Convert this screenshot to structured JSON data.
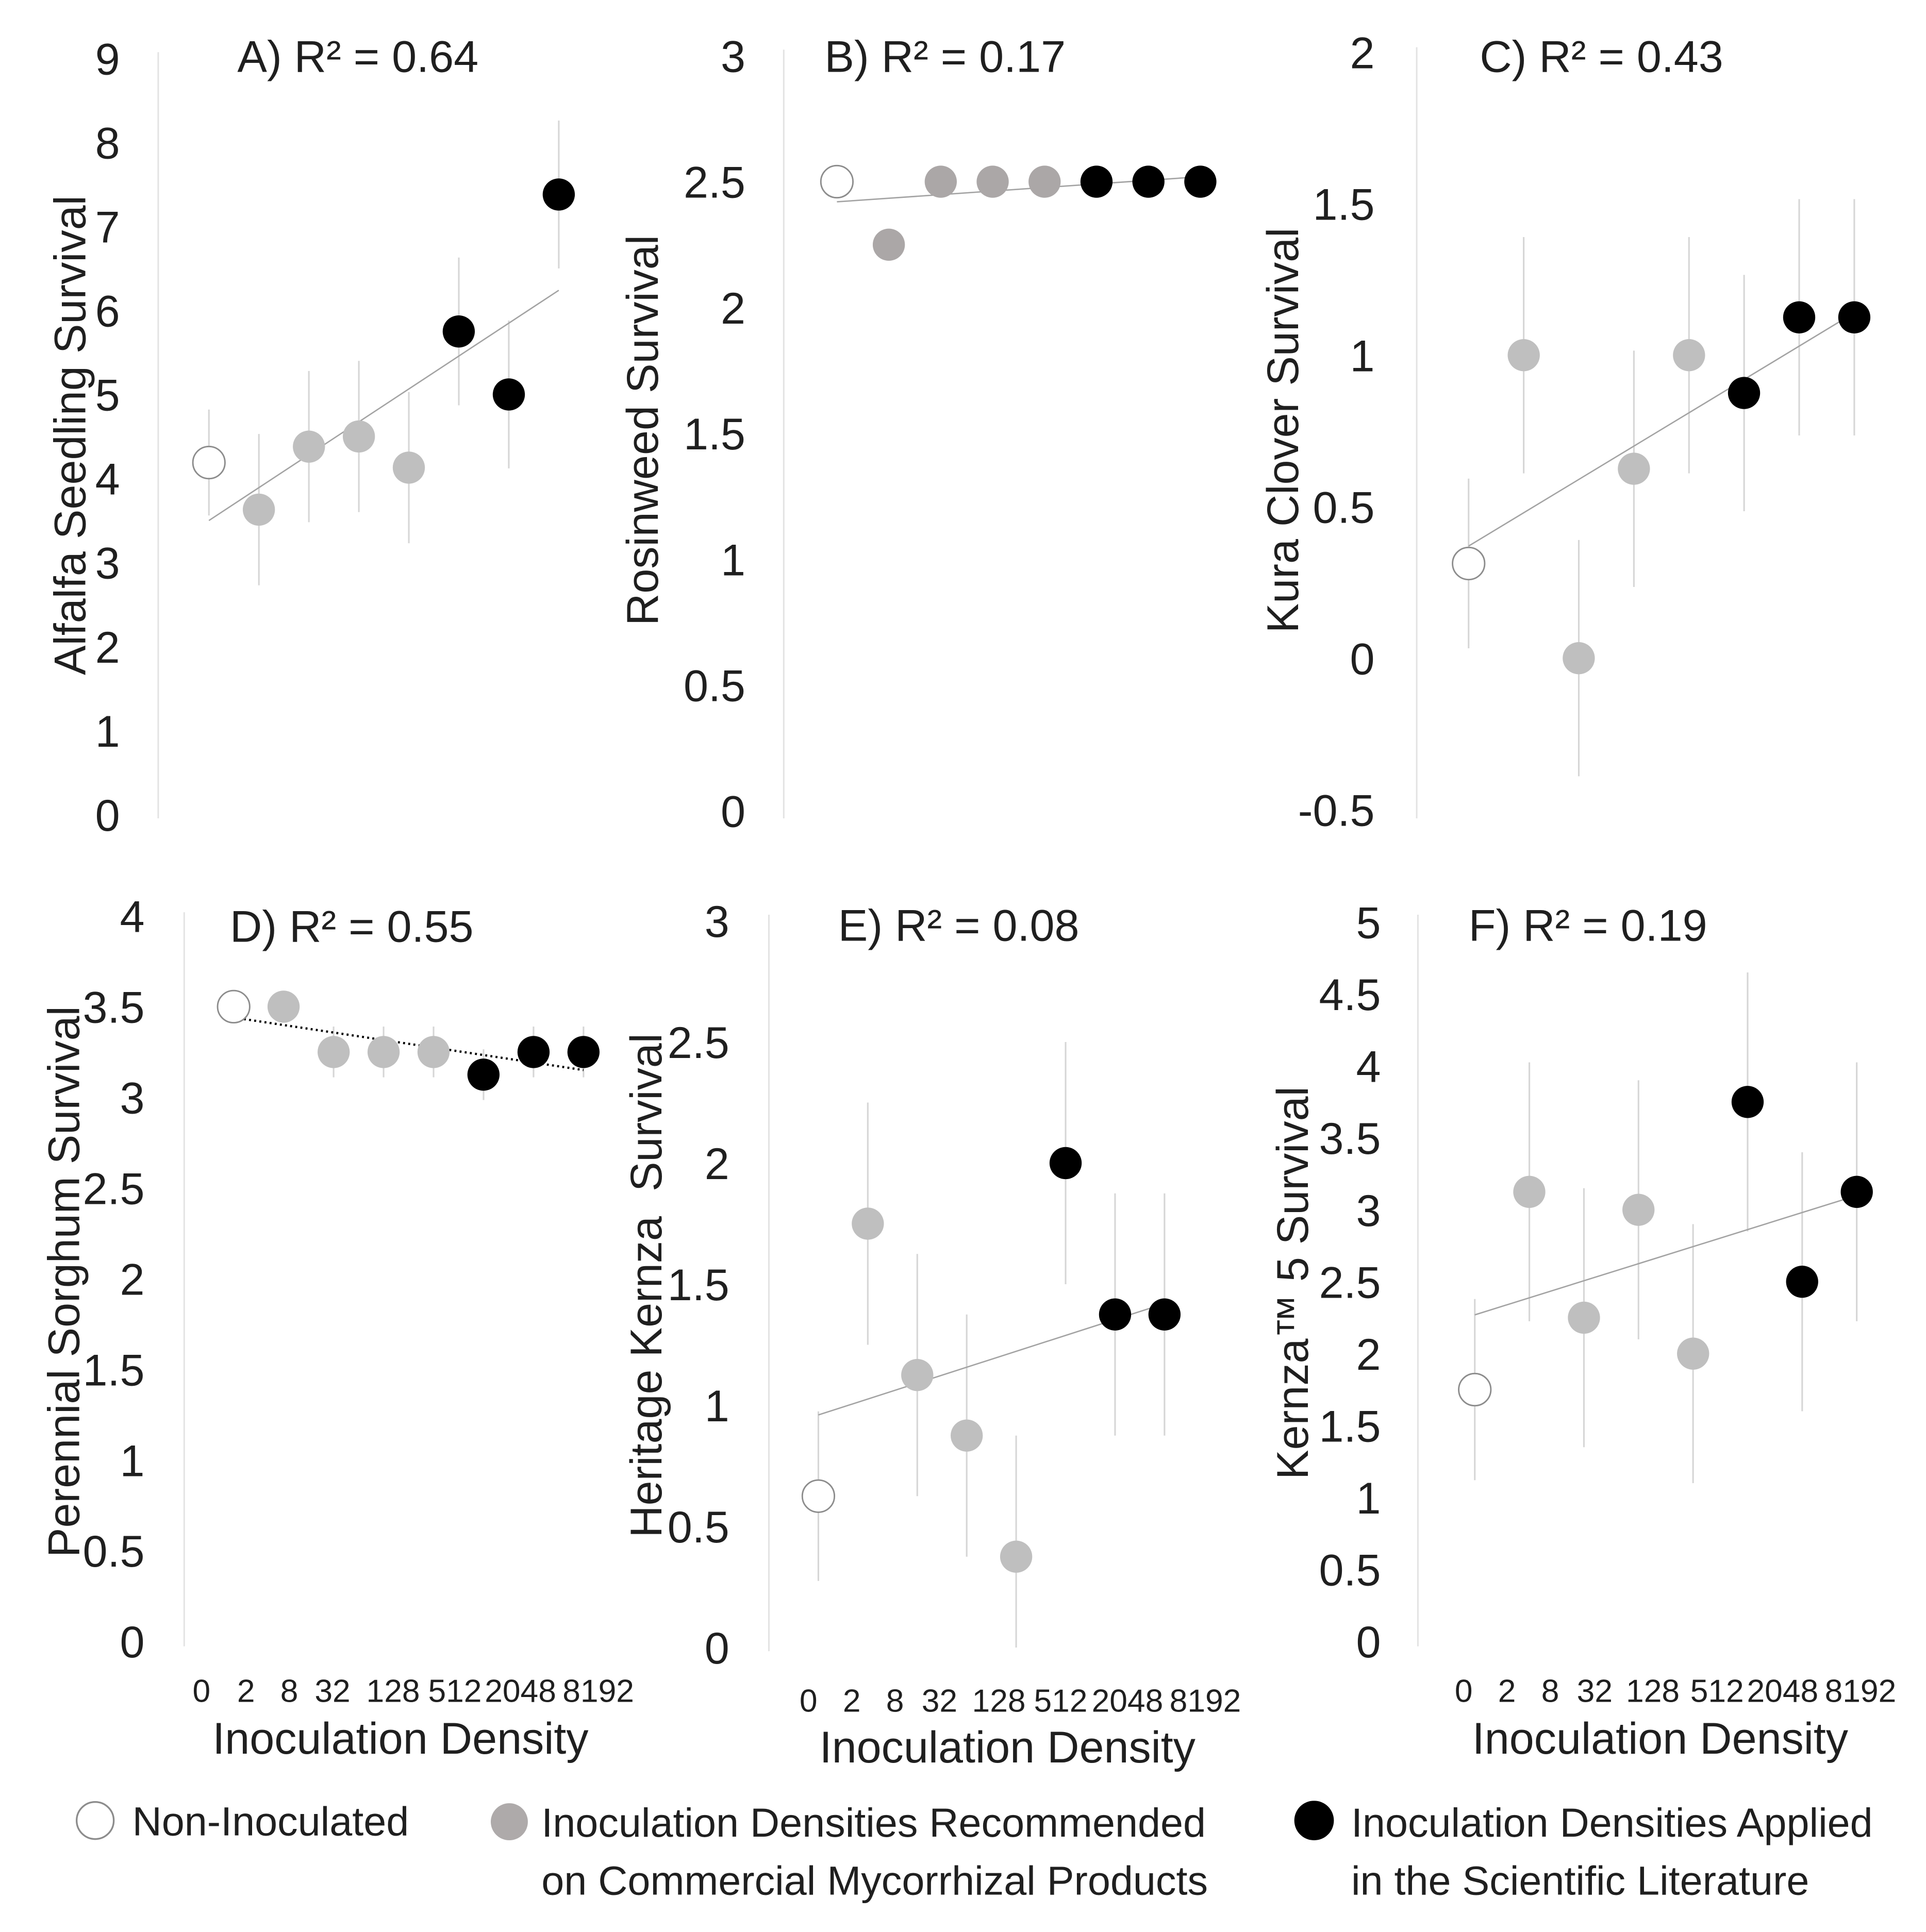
{
  "colors": {
    "points": [
      "#ffffff",
      "#bfbfbf",
      "#000000"
    ],
    "legend_points": [
      "#ffffff",
      "#aeaaaa",
      "#000000"
    ],
    "non_inoculated_stroke": "#8c8c8c",
    "trendline": "#a3a3a3",
    "trendline_dotted": "#000000",
    "error_bar": "#d6d6d6",
    "axis_line": "#e2e2e2"
  },
  "chart_data": [
    {
      "type": "scatter",
      "title": "A) R² = 0.64",
      "r_squared": 0.64,
      "ylabel": "Alfalfa Seedling Survival",
      "xlabel": "",
      "ylim": [
        0,
        9
      ],
      "yticks": [
        "0",
        "1",
        "2",
        "3",
        "4",
        "5",
        "6",
        "7",
        "8",
        "9"
      ],
      "xticks": [],
      "points": [
        {
          "x": 0,
          "y": 4.19,
          "error": 0.63,
          "group": 0
        },
        {
          "x": 2,
          "y": 3.63,
          "error": 0.9,
          "group": 1
        },
        {
          "x": 8,
          "y": 4.38,
          "error": 0.9,
          "group": 1
        },
        {
          "x": 32,
          "y": 4.5,
          "error": 0.9,
          "group": 1
        },
        {
          "x": 128,
          "y": 4.13,
          "error": 0.9,
          "group": 1
        },
        {
          "x": 512,
          "y": 5.75,
          "error": 0.88,
          "group": 2
        },
        {
          "x": 2048,
          "y": 5.0,
          "error": 0.88,
          "group": 2
        },
        {
          "x": 8192,
          "y": 7.38,
          "error": 0.88,
          "group": 2
        }
      ],
      "trendline": {
        "dotted": false,
        "y_start": 3.5,
        "y_end": 6.24
      }
    },
    {
      "type": "scatter",
      "title": "B) R² = 0.17",
      "r_squared": 0.17,
      "ylabel": "Rosinweed Survival",
      "xlabel": "",
      "ylim": [
        0,
        3
      ],
      "yticks": [
        "0",
        "0.5",
        "1",
        "1.5",
        "2",
        "2.5",
        "3"
      ],
      "xticks": [],
      "point_colors": [
        "#ffffff",
        "#aba7a7",
        "#000000"
      ],
      "points": [
        {
          "x": 0,
          "y": 2.5,
          "error": 0,
          "group": 0
        },
        {
          "x": 2,
          "y": 2.25,
          "error": 0,
          "group": 1
        },
        {
          "x": 8,
          "y": 2.5,
          "error": 0,
          "group": 1
        },
        {
          "x": 32,
          "y": 2.5,
          "error": 0,
          "group": 1
        },
        {
          "x": 128,
          "y": 2.5,
          "error": 0,
          "group": 1
        },
        {
          "x": 512,
          "y": 2.5,
          "error": 0,
          "group": 2
        },
        {
          "x": 2048,
          "y": 2.5,
          "error": 0,
          "group": 2
        },
        {
          "x": 8192,
          "y": 2.5,
          "error": 0,
          "group": 2
        }
      ],
      "trendline": {
        "dotted": false,
        "y_start": 2.42,
        "y_end": 2.52
      }
    },
    {
      "type": "scatter",
      "title": "C) R² = 0.43",
      "r_squared": 0.43,
      "ylabel": "Kura Clover Survival",
      "xlabel": "",
      "ylim": [
        -0.5,
        2
      ],
      "yticks": [
        "-0.5",
        "0",
        "0.5",
        "1",
        "1.5",
        "2"
      ],
      "xticks": [],
      "points": [
        {
          "x": 0,
          "y": 0.3125,
          "error": 0.28,
          "group": 0
        },
        {
          "x": 2,
          "y": 1.0,
          "error": 0.39,
          "group": 1
        },
        {
          "x": 8,
          "y": 0.0,
          "error": 0.39,
          "group": 1
        },
        {
          "x": 32,
          "y": 0.625,
          "error": 0.39,
          "group": 1
        },
        {
          "x": 128,
          "y": 1.0,
          "error": 0.39,
          "group": 1
        },
        {
          "x": 512,
          "y": 0.875,
          "error": 0.39,
          "group": 2
        },
        {
          "x": 2048,
          "y": 1.125,
          "error": 0.39,
          "group": 2
        },
        {
          "x": 8192,
          "y": 1.125,
          "error": 0.39,
          "group": 2
        }
      ],
      "trendline": {
        "dotted": false,
        "y_start": 0.37,
        "y_end": 1.14
      }
    },
    {
      "type": "scatter",
      "title": "D) R² = 0.55",
      "r_squared": 0.55,
      "ylabel": "Perennial Sorghum Survival",
      "xlabel": "Inoculation Density",
      "ylim": [
        0,
        4
      ],
      "yticks": [
        "0",
        "0.5",
        "1",
        "1.5",
        "2",
        "2.5",
        "3",
        "3.5",
        "4"
      ],
      "xticks": [
        "0",
        "2",
        "8",
        "32",
        "128",
        "512",
        "2048",
        "8192"
      ],
      "points": [
        {
          "x": 0,
          "y": 3.5,
          "error": 0,
          "group": 0
        },
        {
          "x": 2,
          "y": 3.5,
          "error": 0,
          "group": 1
        },
        {
          "x": 8,
          "y": 3.25,
          "error": 0.14,
          "group": 1
        },
        {
          "x": 32,
          "y": 3.25,
          "error": 0.14,
          "group": 1
        },
        {
          "x": 128,
          "y": 3.25,
          "error": 0.14,
          "group": 1
        },
        {
          "x": 512,
          "y": 3.125,
          "error": 0.14,
          "group": 2
        },
        {
          "x": 2048,
          "y": 3.25,
          "error": 0.14,
          "group": 2
        },
        {
          "x": 8192,
          "y": 3.25,
          "error": 0.14,
          "group": 2
        }
      ],
      "trendline": {
        "dotted": true,
        "y_start": 3.44,
        "y_end": 3.15
      }
    },
    {
      "type": "scatter",
      "title": "E) R² = 0.08",
      "r_squared": 0.08,
      "ylabel": "Heritage Kernza  Survival",
      "xlabel": "Inoculation Density",
      "ylim": [
        0,
        3
      ],
      "yticks": [
        "0",
        "0.5",
        "1",
        "1.5",
        "2",
        "2.5",
        "3"
      ],
      "xticks": [
        "0",
        "2",
        "8",
        "32",
        "128",
        "512",
        "2048",
        "8192"
      ],
      "points": [
        {
          "x": 0,
          "y": 0.625,
          "error": 0.35,
          "group": 0
        },
        {
          "x": 2,
          "y": 1.75,
          "error": 0.5,
          "group": 1
        },
        {
          "x": 8,
          "y": 1.125,
          "error": 0.5,
          "group": 1
        },
        {
          "x": 32,
          "y": 0.875,
          "error": 0.5,
          "group": 1
        },
        {
          "x": 128,
          "y": 0.375,
          "error": 0.5,
          "group": 1
        },
        {
          "x": 512,
          "y": 2.0,
          "error": 0.5,
          "group": 2
        },
        {
          "x": 2048,
          "y": 1.375,
          "error": 0.5,
          "group": 2
        },
        {
          "x": 8192,
          "y": 1.375,
          "error": 0.5,
          "group": 2
        }
      ],
      "trendline": {
        "dotted": false,
        "y_start": 0.96,
        "y_end": 1.42
      }
    },
    {
      "type": "scatter",
      "title": "F) R² = 0.19",
      "r_squared": 0.19,
      "ylabel": "Kernza™ 5 Survival",
      "xlabel": "Inoculation Density",
      "ylim": [
        0,
        5
      ],
      "yticks": [
        "0",
        "0.5",
        "1",
        "1.5",
        "2",
        "2.5",
        "3",
        "3.5",
        "4",
        "4.5",
        "5"
      ],
      "xticks": [
        "0",
        "2",
        "8",
        "32",
        "128",
        "512",
        "2048",
        "8192"
      ],
      "points": [
        {
          "x": 0,
          "y": 1.75,
          "error": 0.63,
          "group": 0
        },
        {
          "x": 2,
          "y": 3.125,
          "error": 0.9,
          "group": 1
        },
        {
          "x": 8,
          "y": 2.25,
          "error": 0.9,
          "group": 1
        },
        {
          "x": 32,
          "y": 3.0,
          "error": 0.9,
          "group": 1
        },
        {
          "x": 128,
          "y": 2.0,
          "error": 0.9,
          "group": 1
        },
        {
          "x": 512,
          "y": 3.75,
          "error": 0.9,
          "group": 2
        },
        {
          "x": 2048,
          "y": 2.5,
          "error": 0.9,
          "group": 2
        },
        {
          "x": 8192,
          "y": 3.125,
          "error": 0.9,
          "group": 2
        }
      ],
      "trendline": {
        "dotted": false,
        "y_start": 2.27,
        "y_end": 3.1
      }
    }
  ],
  "legend": [
    {
      "lines": [
        "Non-Inoculated"
      ]
    },
    {
      "lines": [
        "Inoculation Densities Recommended",
        "on Commercial Mycorrhizal Products"
      ]
    },
    {
      "lines": [
        "Inoculation Densities Applied",
        "in the Scientific Literature"
      ]
    }
  ]
}
